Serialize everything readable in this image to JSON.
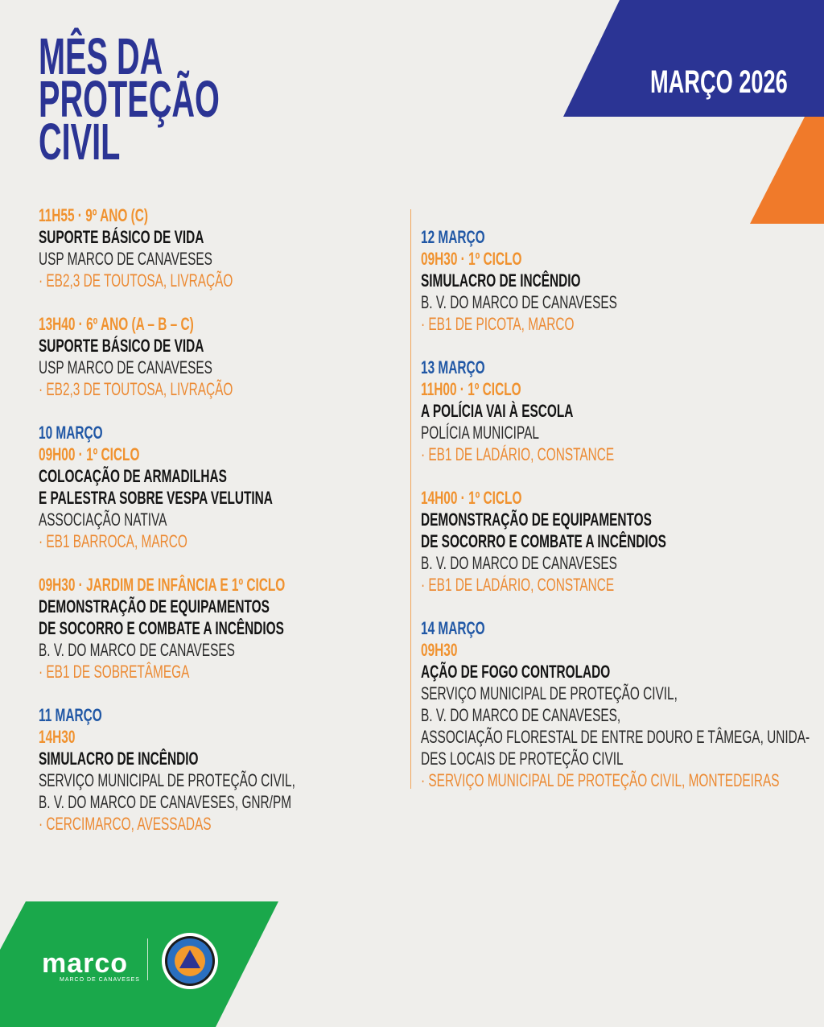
{
  "header": {
    "title_lines": [
      "MÊS DA",
      "PROTEÇÃO",
      "CIVIL"
    ],
    "month": "MARÇO 2026"
  },
  "colors": {
    "blue": "#2b3494",
    "orange": "#f07a2a",
    "green": "#1aa84b",
    "date_blue": "#2057a5",
    "time_orange": "#f0922f"
  },
  "left_column": [
    {
      "date": "",
      "time": "11H55 · 9º ANO (C)",
      "title": [
        "SUPORTE BÁSICO DE VIDA"
      ],
      "org": [
        "USP MARCO DE CANAVESES"
      ],
      "location": "· EB2,3 DE TOUTOSA, LIVRAÇÃO"
    },
    {
      "date": "",
      "time": "13H40 · 6º ANO (A – B – C)",
      "title": [
        "SUPORTE BÁSICO DE VIDA"
      ],
      "org": [
        "USP MARCO DE CANAVESES"
      ],
      "location": "· EB2,3 DE TOUTOSA, LIVRAÇÃO"
    },
    {
      "date": "10 MARÇO",
      "time": "09H00 · 1º CICLO",
      "title": [
        "COLOCAÇÃO DE ARMADILHAS",
        "E PALESTRA SOBRE VESPA VELUTINA"
      ],
      "org": [
        "ASSOCIAÇÃO NATIVA"
      ],
      "location": "· EB1 BARROCA, MARCO"
    },
    {
      "date": "",
      "time": "09H30 · JARDIM DE INFÂNCIA E 1º CICLO",
      "title": [
        "DEMONSTRAÇÃO DE EQUIPAMENTOS",
        "DE SOCORRO E COMBATE A INCÊNDIOS"
      ],
      "org": [
        "B. V. DO MARCO DE CANAVESES"
      ],
      "location": "· EB1 DE SOBRETÂMEGA"
    },
    {
      "date": "11 MARÇO",
      "time": "14H30",
      "title": [
        "SIMULACRO DE INCÊNDIO"
      ],
      "org": [
        "SERVIÇO MUNICIPAL DE PROTEÇÃO CIVIL,",
        "B. V. DO MARCO DE CANAVESES, GNR/PM"
      ],
      "location": "· CERCIMARCO, AVESSADAS"
    }
  ],
  "right_column": [
    {
      "date": "12 MARÇO",
      "time": "09H30 · 1º CICLO",
      "title": [
        "SIMULACRO DE INCÊNDIO"
      ],
      "org": [
        "B. V. DO MARCO DE CANAVESES"
      ],
      "location": "· EB1 DE PICOTA, MARCO"
    },
    {
      "date": "13 MARÇO",
      "time": "11H00 · 1º CICLO",
      "title": [
        "A POLÍCIA VAI À ESCOLA"
      ],
      "org": [
        "POLÍCIA MUNICIPAL"
      ],
      "location": "· EB1 DE LADÁRIO, CONSTANCE"
    },
    {
      "date": "",
      "time": "14H00 · 1º CICLO",
      "title": [
        "DEMONSTRAÇÃO DE EQUIPAMENTOS",
        "DE SOCORRO E COMBATE A INCÊNDIOS"
      ],
      "org": [
        "B. V. DO MARCO DE CANAVESES"
      ],
      "location": "· EB1 DE LADÁRIO, CONSTANCE"
    },
    {
      "date": "14 MARÇO",
      "time": "09H30",
      "title": [
        "AÇÃO DE FOGO CONTROLADO"
      ],
      "org": [
        "SERVIÇO MUNICIPAL DE PROTEÇÃO CIVIL,",
        "B. V. DO MARCO DE CANAVESES,",
        "ASSOCIAÇÃO FLORESTAL DE ENTRE DOURO E TÂMEGA, UNIDA-",
        "DES LOCAIS DE PROTEÇÃO CIVIL"
      ],
      "location": "· SERVIÇO MUNICIPAL DE PROTEÇÃO CIVIL, MONTEDEIRAS"
    }
  ],
  "footer": {
    "logo_word": "marco",
    "logo_sub": "MARCO DE CANAVESES",
    "seal_text": "PROTEÇÃO CIVIL · MARCO DE CANAVESES"
  }
}
